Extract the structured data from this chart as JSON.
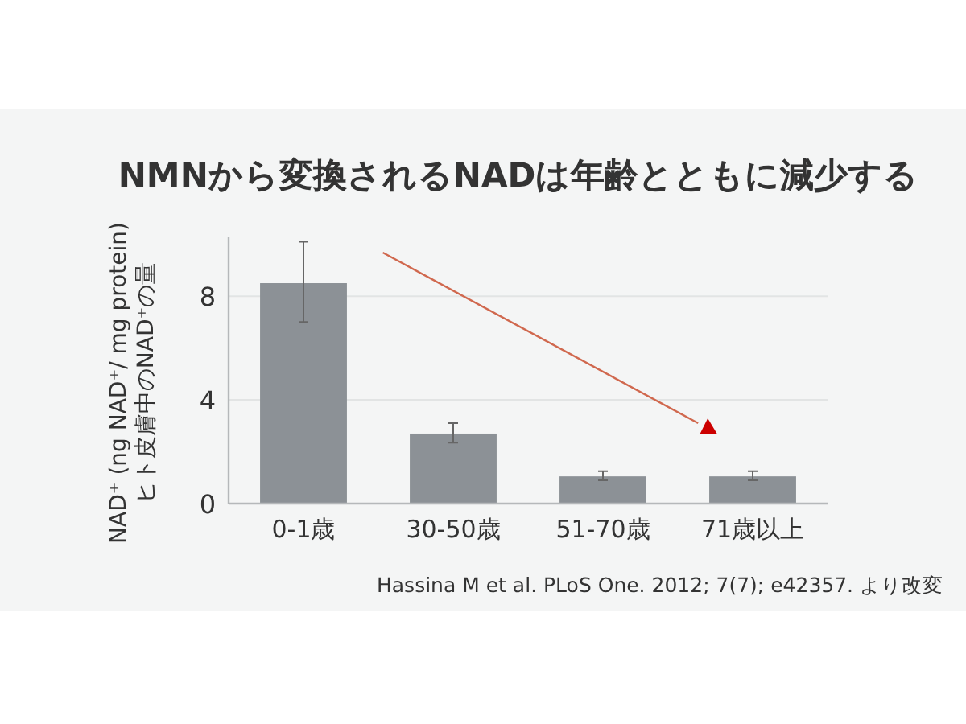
{
  "chart_data": {
    "type": "bar",
    "title": "NMNから変換されるNADは年齢とともに減少する",
    "ylabel": "NAD⁺ (ng NAD⁺/ mg protein)\nヒト皮膚中のNAD⁺の量",
    "categories": [
      "0-1歳",
      "30-50歳",
      "51-70歳",
      "71歳以上"
    ],
    "values": [
      8.5,
      2.7,
      1.05,
      1.05
    ],
    "errors": [
      [
        7.0,
        10.1
      ],
      [
        2.35,
        3.1
      ],
      [
        0.9,
        1.25
      ],
      [
        0.9,
        1.25
      ]
    ],
    "color": "#8c9196",
    "ylim": [
      0,
      10.3
    ],
    "yticks": [
      0,
      4,
      8
    ],
    "grid": "y",
    "annotations": [
      "Hassina M et al. PLoS One. 2012; 7(7); e42357. より改変"
    ]
  }
}
